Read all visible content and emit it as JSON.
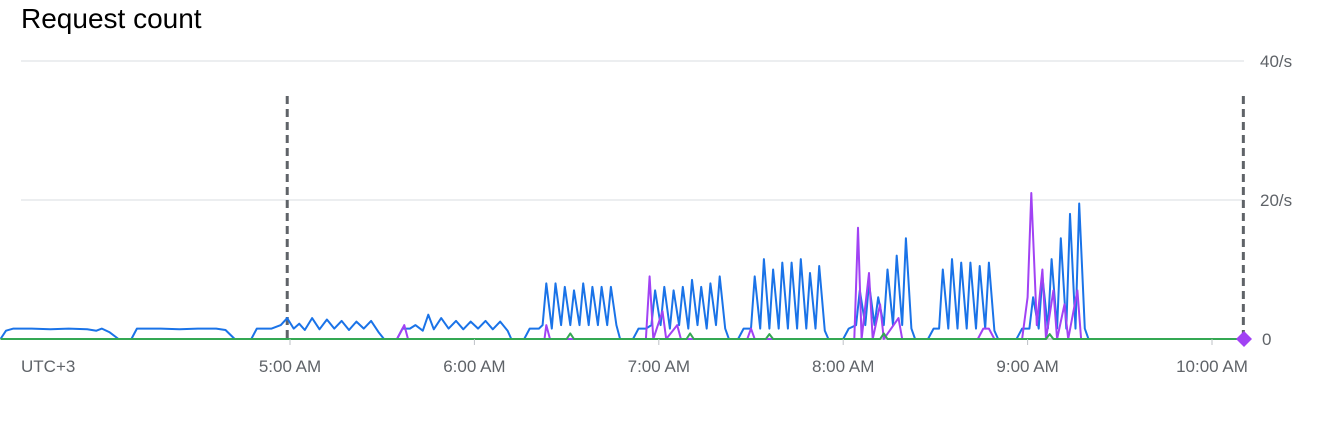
{
  "chart_data": {
    "type": "line",
    "title": "Request count",
    "xlabel": "",
    "ylabel": "",
    "timezone_label": "UTC+3",
    "x_tick_labels": [
      "5:00 AM",
      "6:00 AM",
      "7:00 AM",
      "8:00 AM",
      "9:00 AM",
      "10:00 AM"
    ],
    "x_ticks_hours": [
      5,
      6,
      7,
      8,
      9,
      10
    ],
    "xlim_hours": [
      3.43,
      10.28
    ],
    "y_tick_labels": [
      "40/s",
      "20/s",
      "0"
    ],
    "y_ticks": [
      40,
      20,
      0
    ],
    "ylim": [
      0,
      40
    ],
    "grid": true,
    "legend": "none",
    "markers": [
      {
        "x_hour": 4.985,
        "style": "dashed",
        "color": "#5f6368"
      },
      {
        "x_hour": 10.17,
        "style": "dashed",
        "color": "#5f6368"
      }
    ],
    "end_marker": {
      "x_hour": 10.2,
      "y": 0,
      "color": "#a142f4",
      "shape": "diamond"
    },
    "series": [
      {
        "color": "#1a73e8",
        "points": [
          [
            3.43,
            0
          ],
          [
            3.46,
            1.2
          ],
          [
            3.5,
            1.5
          ],
          [
            3.6,
            1.5
          ],
          [
            3.7,
            1.4
          ],
          [
            3.8,
            1.5
          ],
          [
            3.9,
            1.4
          ],
          [
            3.95,
            1.2
          ],
          [
            3.98,
            1.5
          ],
          [
            4.02,
            1.0
          ],
          [
            4.07,
            0
          ],
          [
            4.14,
            0
          ],
          [
            4.17,
            1.5
          ],
          [
            4.3,
            1.5
          ],
          [
            4.4,
            1.4
          ],
          [
            4.5,
            1.5
          ],
          [
            4.6,
            1.5
          ],
          [
            4.65,
            1.3
          ],
          [
            4.7,
            0
          ],
          [
            4.79,
            0
          ],
          [
            4.82,
            1.5
          ],
          [
            4.9,
            1.5
          ],
          [
            4.95,
            2.0
          ],
          [
            4.985,
            3.0
          ],
          [
            5.02,
            1.5
          ],
          [
            5.05,
            2.2
          ],
          [
            5.08,
            1.3
          ],
          [
            5.12,
            3.0
          ],
          [
            5.16,
            1.4
          ],
          [
            5.2,
            2.8
          ],
          [
            5.24,
            1.5
          ],
          [
            5.28,
            2.6
          ],
          [
            5.32,
            1.3
          ],
          [
            5.36,
            2.5
          ],
          [
            5.4,
            1.5
          ],
          [
            5.44,
            2.6
          ],
          [
            5.48,
            1.0
          ],
          [
            5.51,
            0
          ],
          [
            5.58,
            0
          ],
          [
            5.61,
            1.5
          ],
          [
            5.65,
            1.5
          ],
          [
            5.68,
            2.0
          ],
          [
            5.72,
            1.2
          ],
          [
            5.75,
            3.5
          ],
          [
            5.78,
            1.4
          ],
          [
            5.82,
            3.0
          ],
          [
            5.86,
            1.5
          ],
          [
            5.9,
            2.6
          ],
          [
            5.94,
            1.4
          ],
          [
            5.98,
            2.5
          ],
          [
            6.02,
            1.5
          ],
          [
            6.06,
            2.6
          ],
          [
            6.1,
            1.4
          ],
          [
            6.14,
            2.5
          ],
          [
            6.18,
            1.2
          ],
          [
            6.2,
            0
          ],
          [
            6.27,
            0
          ],
          [
            6.3,
            1.5
          ],
          [
            6.35,
            1.5
          ],
          [
            6.37,
            2.0
          ],
          [
            6.39,
            8.0
          ],
          [
            6.42,
            1.5
          ],
          [
            6.44,
            8.0
          ],
          [
            6.47,
            2.0
          ],
          [
            6.49,
            7.5
          ],
          [
            6.52,
            2.0
          ],
          [
            6.54,
            7.0
          ],
          [
            6.57,
            2.0
          ],
          [
            6.59,
            8.0
          ],
          [
            6.62,
            2.0
          ],
          [
            6.64,
            7.5
          ],
          [
            6.67,
            2.0
          ],
          [
            6.69,
            7.5
          ],
          [
            6.72,
            2.0
          ],
          [
            6.74,
            7.5
          ],
          [
            6.77,
            2.0
          ],
          [
            6.79,
            0
          ],
          [
            6.86,
            0
          ],
          [
            6.89,
            1.5
          ],
          [
            6.93,
            1.5
          ],
          [
            6.96,
            2.0
          ],
          [
            6.98,
            7.0
          ],
          [
            7.01,
            2.0
          ],
          [
            7.03,
            7.5
          ],
          [
            7.06,
            1.5
          ],
          [
            7.08,
            7.0
          ],
          [
            7.11,
            2.0
          ],
          [
            7.13,
            7.5
          ],
          [
            7.16,
            1.5
          ],
          [
            7.18,
            8.5
          ],
          [
            7.21,
            2.0
          ],
          [
            7.23,
            7.5
          ],
          [
            7.26,
            1.5
          ],
          [
            7.28,
            8.0
          ],
          [
            7.31,
            2.0
          ],
          [
            7.33,
            9.0
          ],
          [
            7.36,
            1.5
          ],
          [
            7.38,
            0
          ],
          [
            7.43,
            0
          ],
          [
            7.46,
            1.5
          ],
          [
            7.5,
            1.5
          ],
          [
            7.52,
            9.0
          ],
          [
            7.55,
            1.5
          ],
          [
            7.57,
            11.5
          ],
          [
            7.6,
            1.5
          ],
          [
            7.62,
            10.0
          ],
          [
            7.65,
            1.5
          ],
          [
            7.67,
            11.0
          ],
          [
            7.7,
            1.5
          ],
          [
            7.72,
            11.0
          ],
          [
            7.75,
            1.5
          ],
          [
            7.77,
            11.5
          ],
          [
            7.8,
            1.5
          ],
          [
            7.82,
            9.5
          ],
          [
            7.85,
            1.5
          ],
          [
            7.87,
            10.5
          ],
          [
            7.9,
            1.2
          ],
          [
            7.92,
            0
          ],
          [
            8.0,
            0
          ],
          [
            8.03,
            1.5
          ],
          [
            8.07,
            2.0
          ],
          [
            8.09,
            7.0
          ],
          [
            8.12,
            2.0
          ],
          [
            8.14,
            8.0
          ],
          [
            8.17,
            2.0
          ],
          [
            8.19,
            6.0
          ],
          [
            8.22,
            2.0
          ],
          [
            8.24,
            10.0
          ],
          [
            8.27,
            2.0
          ],
          [
            8.29,
            12.0
          ],
          [
            8.32,
            2.0
          ],
          [
            8.34,
            14.5
          ],
          [
            8.37,
            1.5
          ],
          [
            8.39,
            0
          ],
          [
            8.46,
            0
          ],
          [
            8.49,
            1.5
          ],
          [
            8.52,
            1.5
          ],
          [
            8.54,
            10.0
          ],
          [
            8.57,
            1.5
          ],
          [
            8.59,
            11.5
          ],
          [
            8.62,
            1.5
          ],
          [
            8.64,
            11.0
          ],
          [
            8.67,
            1.5
          ],
          [
            8.69,
            11.0
          ],
          [
            8.72,
            1.5
          ],
          [
            8.74,
            10.5
          ],
          [
            8.77,
            1.5
          ],
          [
            8.79,
            11.0
          ],
          [
            8.82,
            1.2
          ],
          [
            8.84,
            0
          ],
          [
            8.94,
            0
          ],
          [
            8.97,
            1.5
          ],
          [
            9.01,
            1.5
          ],
          [
            9.03,
            6.0
          ],
          [
            9.06,
            1.5
          ],
          [
            9.08,
            9.0
          ],
          [
            9.11,
            1.5
          ],
          [
            9.13,
            11.5
          ],
          [
            9.16,
            1.5
          ],
          [
            9.18,
            14.5
          ],
          [
            9.21,
            1.5
          ],
          [
            9.23,
            18.0
          ],
          [
            9.26,
            1.5
          ],
          [
            9.28,
            19.5
          ],
          [
            9.31,
            1.5
          ],
          [
            9.33,
            0
          ]
        ]
      },
      {
        "color": "#a142f4",
        "points": [
          [
            3.43,
            0
          ],
          [
            5.58,
            0
          ],
          [
            5.62,
            2.0
          ],
          [
            5.64,
            0
          ],
          [
            6.38,
            0
          ],
          [
            6.39,
            2.0
          ],
          [
            6.41,
            0
          ],
          [
            6.93,
            0
          ],
          [
            6.95,
            9.0
          ],
          [
            6.97,
            0
          ],
          [
            7.02,
            4.0
          ],
          [
            7.04,
            0
          ],
          [
            7.1,
            2.0
          ],
          [
            7.12,
            0
          ],
          [
            7.48,
            0
          ],
          [
            7.5,
            1.5
          ],
          [
            7.52,
            0
          ],
          [
            8.06,
            0
          ],
          [
            8.08,
            16.0
          ],
          [
            8.1,
            0
          ],
          [
            8.14,
            9.5
          ],
          [
            8.16,
            0
          ],
          [
            8.2,
            5.0
          ],
          [
            8.22,
            0
          ],
          [
            8.3,
            3.0
          ],
          [
            8.32,
            0
          ],
          [
            8.73,
            0
          ],
          [
            8.76,
            1.5
          ],
          [
            8.79,
            1.5
          ],
          [
            8.82,
            0
          ],
          [
            8.97,
            0
          ],
          [
            9.0,
            6.0
          ],
          [
            9.02,
            21.0
          ],
          [
            9.05,
            2.0
          ],
          [
            9.08,
            10.0
          ],
          [
            9.1,
            0
          ],
          [
            9.14,
            7.0
          ],
          [
            9.16,
            0
          ],
          [
            9.2,
            5.0
          ],
          [
            9.22,
            0
          ],
          [
            9.27,
            7.0
          ],
          [
            9.29,
            0
          ],
          [
            10.2,
            0
          ]
        ]
      },
      {
        "color": "#34a853",
        "points": [
          [
            3.43,
            0
          ],
          [
            6.5,
            0
          ],
          [
            6.52,
            0.8
          ],
          [
            6.54,
            0
          ],
          [
            7.15,
            0
          ],
          [
            7.17,
            0.8
          ],
          [
            7.19,
            0
          ],
          [
            7.58,
            0
          ],
          [
            7.6,
            0.7
          ],
          [
            7.62,
            0
          ],
          [
            8.2,
            0
          ],
          [
            8.22,
            0.8
          ],
          [
            8.24,
            0
          ],
          [
            9.1,
            0
          ],
          [
            9.12,
            0.7
          ],
          [
            9.14,
            0
          ],
          [
            10.2,
            0
          ]
        ]
      }
    ]
  }
}
